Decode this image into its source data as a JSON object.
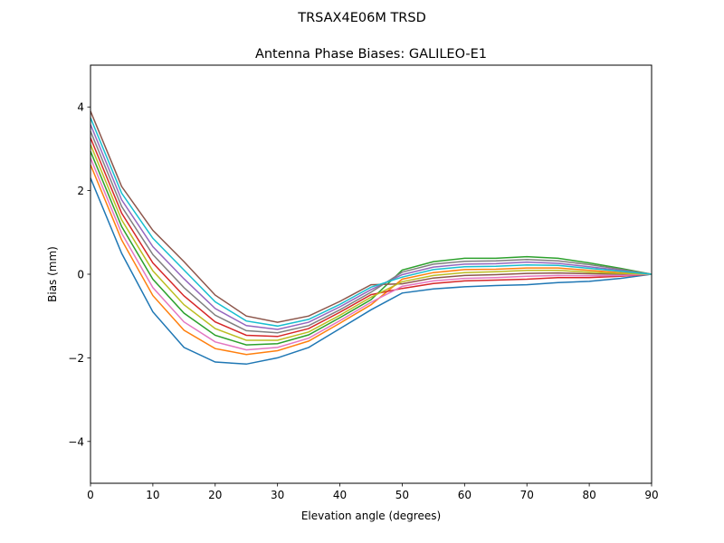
{
  "figure": {
    "suptitle": "TRSAX4E06M      TRSD"
  },
  "chart_data": {
    "type": "line",
    "title": "Antenna Phase Biases: GALILEO-E1",
    "xlabel": "Elevation angle (degrees)",
    "ylabel": "Bias (mm)",
    "xlim": [
      0,
      90
    ],
    "ylim": [
      -5,
      5
    ],
    "xticks": [
      0,
      10,
      20,
      30,
      40,
      50,
      60,
      70,
      80,
      90
    ],
    "yticks": [
      -4,
      -2,
      0,
      2,
      4
    ],
    "xtick_labels": [
      "0",
      "10",
      "20",
      "30",
      "40",
      "50",
      "60",
      "70",
      "80",
      "90"
    ],
    "ytick_labels": [
      "−4",
      "−2",
      "0",
      "2",
      "4"
    ],
    "grid": false,
    "legend": "none",
    "colors": [
      "#1f77b4",
      "#ff7f0e",
      "#2ca02c",
      "#d62728",
      "#9467bd",
      "#8c564b",
      "#e377c2",
      "#7f7f7f",
      "#bcbd22",
      "#17becf"
    ],
    "x": [
      0,
      5,
      10,
      15,
      20,
      25,
      30,
      35,
      40,
      45,
      50,
      55,
      60,
      65,
      70,
      75,
      80,
      85,
      90
    ],
    "series": [
      {
        "values": [
          2.3,
          0.5,
          -0.9,
          -1.75,
          -2.1,
          -2.15,
          -2.0,
          -1.75,
          -1.3,
          -0.85,
          -0.45,
          -0.35,
          -0.3,
          -0.27,
          -0.25,
          -0.2,
          -0.17,
          -0.1,
          0
        ]
      },
      {
        "values": [
          2.62,
          0.82,
          -0.51,
          -1.34,
          -1.78,
          -1.92,
          -1.83,
          -1.6,
          -1.17,
          -0.73,
          -0.12,
          0.04,
          0.11,
          0.12,
          0.15,
          0.15,
          0.09,
          0.04,
          0
        ]
      },
      {
        "values": [
          2.94,
          1.14,
          -0.12,
          -0.93,
          -1.46,
          -1.69,
          -1.66,
          -1.45,
          -1.04,
          -0.61,
          0.1,
          0.3,
          0.38,
          0.38,
          0.42,
          0.38,
          0.27,
          0.14,
          0
        ]
      },
      {
        "values": [
          3.26,
          1.46,
          0.27,
          -0.52,
          -1.14,
          -1.46,
          -1.49,
          -1.3,
          -0.91,
          -0.49,
          -0.34,
          -0.22,
          -0.16,
          -0.14,
          -0.12,
          -0.08,
          -0.08,
          -0.05,
          0
        ]
      },
      {
        "values": [
          3.58,
          1.78,
          0.66,
          -0.11,
          -0.82,
          -1.23,
          -1.32,
          -1.15,
          -0.78,
          -0.37,
          -0.01,
          0.17,
          0.24,
          0.25,
          0.29,
          0.26,
          0.18,
          0.09,
          0
        ]
      },
      {
        "values": [
          3.9,
          2.1,
          1.05,
          0.3,
          -0.5,
          -1.0,
          -1.15,
          -1.0,
          -0.65,
          -0.25,
          -0.23,
          -0.09,
          -0.03,
          -0.01,
          0.02,
          0.03,
          0.01,
          0,
          0
        ]
      },
      {
        "values": [
          2.78,
          0.98,
          -0.32,
          -1.14,
          -1.62,
          -1.81,
          -1.75,
          -1.53,
          -1.11,
          -0.67,
          -0.29,
          -0.16,
          -0.1,
          -0.08,
          -0.05,
          -0.03,
          -0.04,
          -0.03,
          0
        ]
      },
      {
        "values": [
          3.42,
          1.62,
          0.47,
          -0.32,
          -0.98,
          -1.35,
          -1.4,
          -1.23,
          -0.85,
          -0.43,
          0.05,
          0.24,
          0.31,
          0.32,
          0.35,
          0.32,
          0.23,
          0.12,
          0
        ]
      },
      {
        "values": [
          3.1,
          1.3,
          0.08,
          -0.73,
          -1.3,
          -1.58,
          -1.58,
          -1.38,
          -0.98,
          -0.55,
          -0.18,
          -0.03,
          0.04,
          0.06,
          0.09,
          0.09,
          0.05,
          0.02,
          0
        ]
      },
      {
        "values": [
          3.74,
          1.94,
          0.86,
          0.1,
          -0.66,
          -1.12,
          -1.24,
          -1.08,
          -0.72,
          -0.31,
          -0.07,
          0.11,
          0.18,
          0.19,
          0.22,
          0.21,
          0.14,
          0.07,
          0
        ]
      }
    ]
  }
}
